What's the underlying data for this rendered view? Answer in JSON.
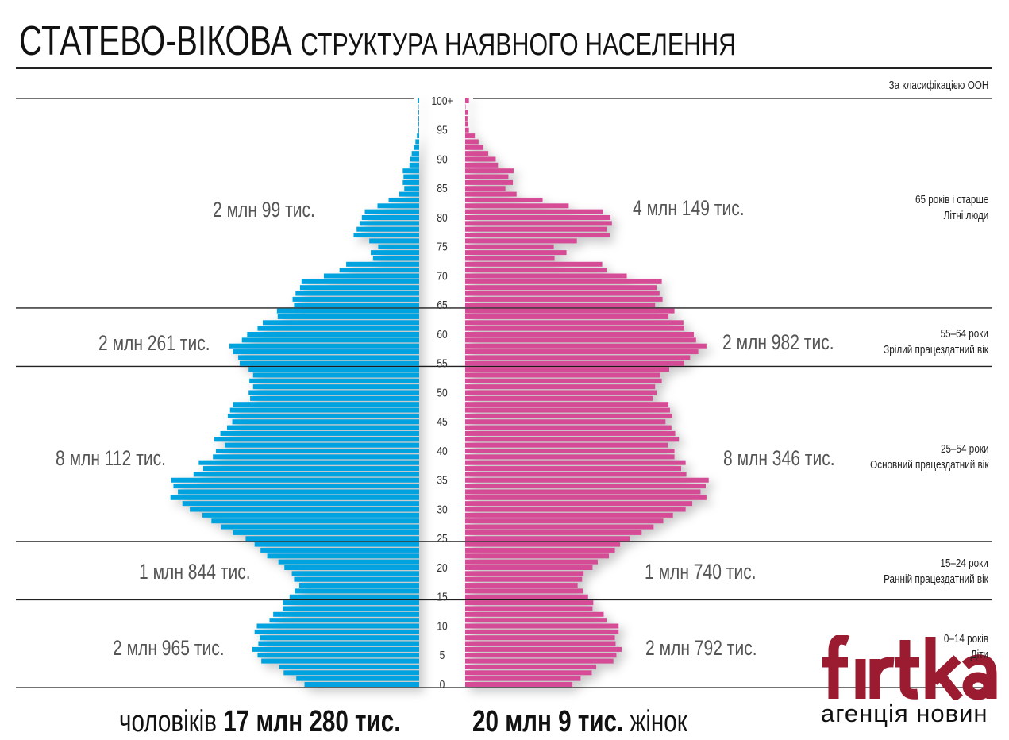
{
  "title": {
    "main": "СТАТЕВО-ВІКОВА",
    "sub": "СТРУКТУРА НАЯВНОГО НАСЕЛЕННЯ"
  },
  "classification_note": "За класифікацією ООН",
  "groups": [
    {
      "range": "65 років і старше",
      "name": "Літні люди",
      "male": "2 млн 99 тис.",
      "female": "4 млн 149 тис."
    },
    {
      "range": "55–64 роки",
      "name": "Зрілий працездатний вік",
      "male": "2 млн 261 тис.",
      "female": "2 млн 982 тис."
    },
    {
      "range": "25–54 роки",
      "name": "Основний працездатний вік",
      "male": "8 млн 112 тис.",
      "female": "8 млн 346 тис."
    },
    {
      "range": "15–24 роки",
      "name": "Ранній працездатний вік",
      "male": "1 млн 844 тис.",
      "female": "1 млн 740 тис."
    },
    {
      "range": "0–14 років",
      "name": "Діти",
      "male": "2 млн 965 тис.",
      "female": "2 млн 792 тис."
    }
  ],
  "totals": {
    "male_word": "чоловіків",
    "male_value": "17 млн 280 тис.",
    "female_value": "20 млн 9 тис.",
    "female_word": "жінок"
  },
  "logo": {
    "brand": "firtka",
    "tagline": "агенція новин"
  },
  "colors": {
    "male": "#00a3e0",
    "female": "#d64b96",
    "logo": "#9b1b30"
  },
  "chart_data": {
    "type": "bar",
    "orientation": "horizontal-population-pyramid",
    "unit": "thousand people (estimated)",
    "age_tick_labels": [
      "0",
      "5",
      "10",
      "15",
      "20",
      "25",
      "30",
      "35",
      "40",
      "45",
      "50",
      "55",
      "60",
      "65",
      "70",
      "75",
      "80",
      "85",
      "90",
      "95",
      "100+"
    ],
    "ages": [
      0,
      1,
      2,
      3,
      4,
      5,
      6,
      7,
      8,
      9,
      10,
      11,
      12,
      13,
      14,
      15,
      16,
      17,
      18,
      19,
      20,
      21,
      22,
      23,
      24,
      25,
      26,
      27,
      28,
      29,
      30,
      31,
      32,
      33,
      34,
      35,
      36,
      37,
      38,
      39,
      40,
      41,
      42,
      43,
      44,
      45,
      46,
      47,
      48,
      49,
      50,
      51,
      52,
      53,
      54,
      55,
      56,
      57,
      58,
      59,
      60,
      61,
      62,
      63,
      64,
      65,
      66,
      67,
      68,
      69,
      70,
      71,
      72,
      73,
      74,
      75,
      76,
      77,
      78,
      79,
      80,
      81,
      82,
      83,
      84,
      85,
      86,
      87,
      88,
      89,
      90,
      91,
      92,
      93,
      94,
      95,
      96,
      97,
      98,
      99,
      100
    ],
    "series": [
      {
        "name": "чоловіків",
        "side": "left",
        "values": [
          154,
          165,
          182,
          188,
          212,
          217,
          224,
          216,
          214,
          221,
          218,
          201,
          196,
          183,
          183,
          174,
          167,
          161,
          168,
          171,
          181,
          189,
          204,
          213,
          221,
          233,
          250,
          266,
          279,
          291,
          308,
          318,
          334,
          324,
          330,
          333,
          303,
          290,
          296,
          277,
          273,
          261,
          275,
          267,
          258,
          251,
          257,
          254,
          250,
          227,
          229,
          223,
          228,
          223,
          229,
          241,
          243,
          250,
          255,
          238,
          231,
          217,
          210,
          190,
          191,
          168,
          170,
          166,
          160,
          158,
          128,
          107,
          98,
          62,
          65,
          55,
          67,
          88,
          84,
          80,
          77,
          73,
          56,
          41,
          27,
          20,
          22,
          21,
          22,
          13,
          12,
          10,
          7,
          5,
          3,
          1,
          1,
          1,
          1,
          0.5,
          2
        ]
      },
      {
        "name": "жінок",
        "side": "right",
        "values": [
          144,
          155,
          170,
          176,
          199,
          203,
          210,
          202,
          201,
          206,
          206,
          190,
          186,
          171,
          172,
          165,
          158,
          151,
          157,
          159,
          171,
          178,
          193,
          201,
          208,
          221,
          237,
          253,
          266,
          279,
          296,
          305,
          324,
          316,
          323,
          327,
          297,
          290,
          296,
          281,
          281,
          272,
          287,
          282,
          277,
          269,
          278,
          275,
          273,
          252,
          257,
          255,
          264,
          262,
          274,
          294,
          302,
          313,
          324,
          310,
          307,
          294,
          293,
          273,
          281,
          255,
          265,
          261,
          257,
          264,
          217,
          190,
          184,
          120,
          136,
          119,
          150,
          194,
          190,
          197,
          195,
          185,
          139,
          104,
          69,
          54,
          64,
          58,
          65,
          44,
          41,
          31,
          24,
          18,
          13,
          5,
          4,
          3,
          4,
          0.5,
          5
        ]
      }
    ],
    "group_boundaries_ages": [
      15,
      25,
      55,
      65
    ]
  }
}
